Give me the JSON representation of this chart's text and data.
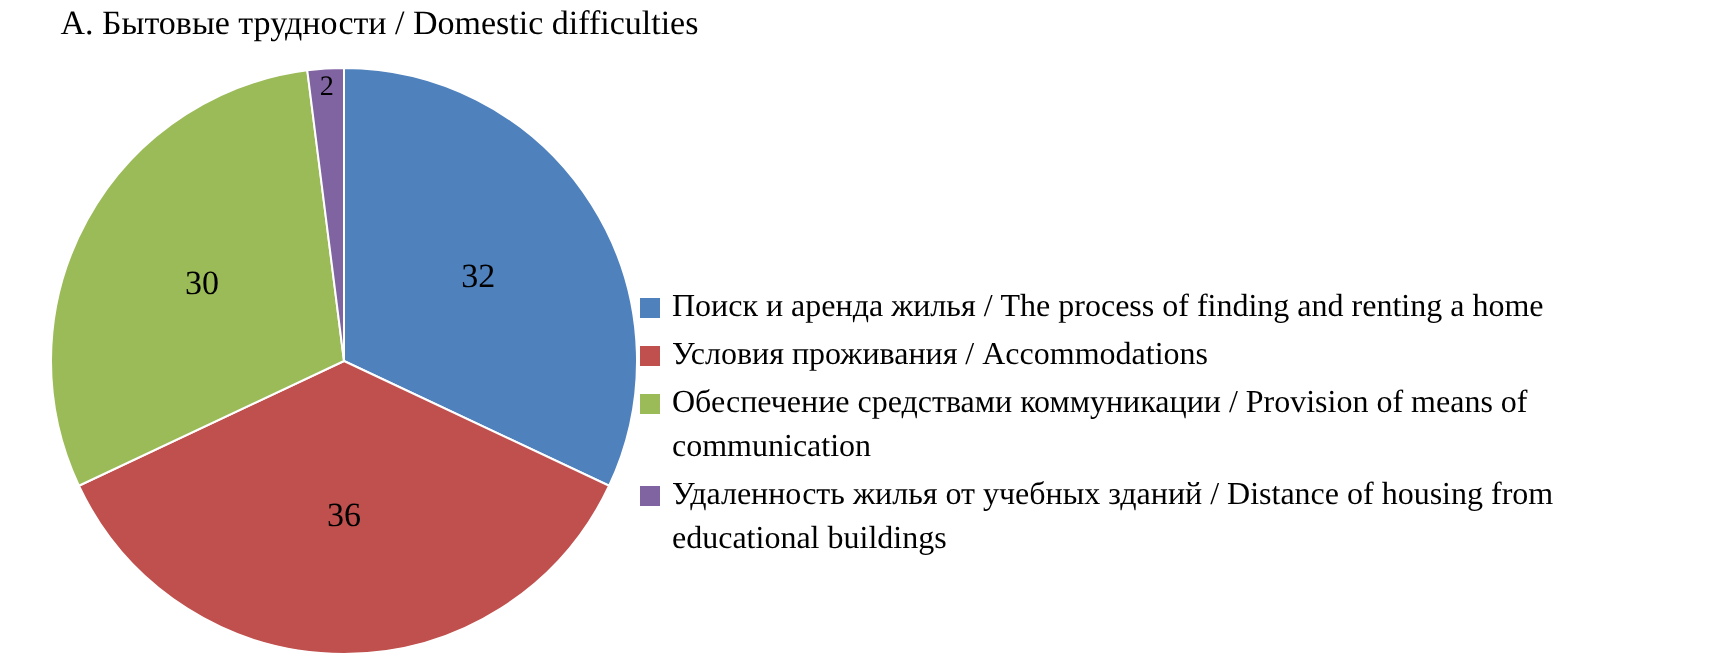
{
  "chart_data": {
    "type": "pie",
    "title": "А. Бытовые трудности / Domestic difficulties",
    "categories": [
      "Поиск и аренда жилья / The process of finding and renting a home",
      "Условия проживания / Accommodations",
      "Обеспечение средствами коммуникации / Provision of means of communication",
      "Удаленность жилья от учебных зданий / Distance of housing from educational buildings"
    ],
    "values": [
      32,
      36,
      30,
      2
    ],
    "colors": [
      "#4f81bd",
      "#c0504d",
      "#9bbb59",
      "#8064a2"
    ],
    "data_labels": true,
    "legend": "right"
  }
}
